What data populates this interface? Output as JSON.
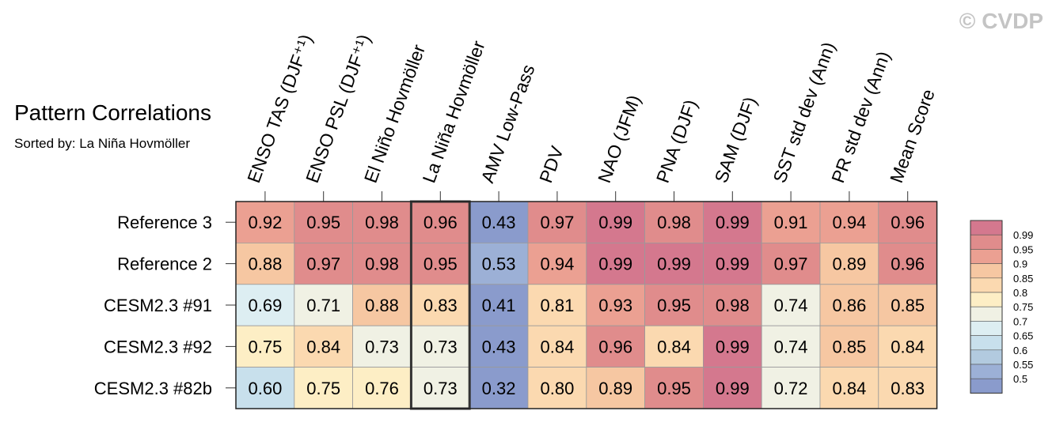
{
  "watermark": "© CVDP",
  "chart_data": {
    "type": "heatmap",
    "title": "Pattern Correlations",
    "subtitle": "Sorted by: La Niña Hovmöller",
    "columns": [
      "ENSO TAS (DJF⁺¹)",
      "ENSO PSL (DJF⁺¹)",
      "El Niño Hovmöller",
      "La Niña Hovmöller",
      "AMV Low-Pass",
      "PDV",
      "NAO (JFM)",
      "PNA (DJF)",
      "SAM (DJF)",
      "SST std dev (Ann)",
      "PR std dev (Ann)",
      "Mean Score"
    ],
    "rows": [
      "Reference 3",
      "Reference 2",
      "CESM2.3 #91",
      "CESM2.3 #92",
      "CESM2.3 #82b"
    ],
    "values": [
      [
        "0.92",
        "0.95",
        "0.98",
        "0.96",
        "0.43",
        "0.97",
        "0.99",
        "0.98",
        "0.99",
        "0.91",
        "0.94",
        "0.96"
      ],
      [
        "0.88",
        "0.97",
        "0.98",
        "0.95",
        "0.53",
        "0.94",
        "0.99",
        "0.99",
        "0.99",
        "0.97",
        "0.89",
        "0.96"
      ],
      [
        "0.69",
        "0.71",
        "0.88",
        "0.83",
        "0.41",
        "0.81",
        "0.93",
        "0.95",
        "0.98",
        "0.74",
        "0.86",
        "0.85"
      ],
      [
        "0.75",
        "0.84",
        "0.73",
        "0.73",
        "0.43",
        "0.84",
        "0.96",
        "0.84",
        "0.99",
        "0.74",
        "0.85",
        "0.84"
      ],
      [
        "0.60",
        "0.75",
        "0.76",
        "0.73",
        "0.32",
        "0.80",
        "0.89",
        "0.95",
        "0.99",
        "0.72",
        "0.84",
        "0.83"
      ]
    ],
    "highlighted_column": "La Niña Hovmöller",
    "colorbar": {
      "labels": [
        "0.99",
        "0.95",
        "0.9",
        "0.85",
        "0.8",
        "0.75",
        "0.7",
        "0.65",
        "0.6",
        "0.55",
        "0.5"
      ],
      "bounds": [
        0.99,
        0.95,
        0.9,
        0.85,
        0.8,
        0.75,
        0.7,
        0.65,
        0.6,
        0.55,
        0.5
      ],
      "colors": [
        "#d4788e",
        "#e08c8c",
        "#eba092",
        "#f6c7a2",
        "#fbd9b0",
        "#fdeec5",
        "#f0f1e4",
        "#ddeef2",
        "#c8e0ec",
        "#b2cadf",
        "#9cb0d6",
        "#8a9bcc"
      ]
    }
  }
}
